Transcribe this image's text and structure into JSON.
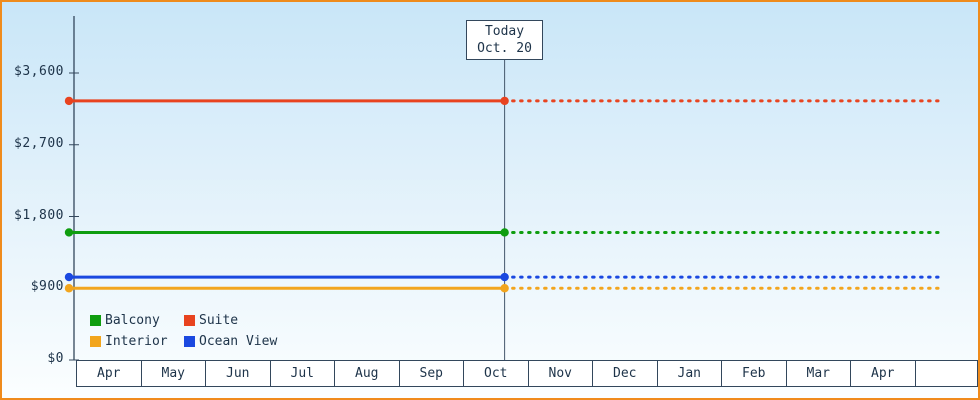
{
  "chart_data": {
    "type": "line",
    "categories": [
      "Apr",
      "May",
      "Jun",
      "Jul",
      "Aug",
      "Sep",
      "Oct",
      "Nov",
      "Dec",
      "Jan",
      "Feb",
      "Mar",
      "Apr"
    ],
    "y_ticks": [
      "$0",
      "$900",
      "$1,800",
      "$2,700",
      "$3,600"
    ],
    "y_tick_values": [
      0,
      900,
      1800,
      2700,
      3600
    ],
    "ylim": [
      0,
      4300
    ],
    "grid": "off",
    "legend_position": "bottom-left",
    "today": {
      "lines": [
        "Today",
        "Oct. 20"
      ],
      "month_index": 6,
      "day": 20
    },
    "series": [
      {
        "name": "Balcony",
        "color": "#0f9d0f",
        "value": 1600
      },
      {
        "name": "Suite",
        "color": "#e8431f",
        "value": 3250
      },
      {
        "name": "Interior",
        "color": "#f2a51d",
        "value": 900
      },
      {
        "name": "Ocean View",
        "color": "#1a48e0",
        "value": 1040
      }
    ],
    "legend_rows": [
      [
        "Balcony",
        "Suite"
      ],
      [
        "Interior",
        "Ocean View"
      ]
    ],
    "line_style": {
      "before_today": "solid",
      "after_today": "dotted",
      "markers": "at line start and at today"
    }
  },
  "colors": {
    "frame_border": "#ef8b1c",
    "axis": "#33475c",
    "text": "#1d3349",
    "today_line": "#44576b",
    "background_top": "#c9e6f8",
    "background_bottom": "#fbfeff"
  }
}
